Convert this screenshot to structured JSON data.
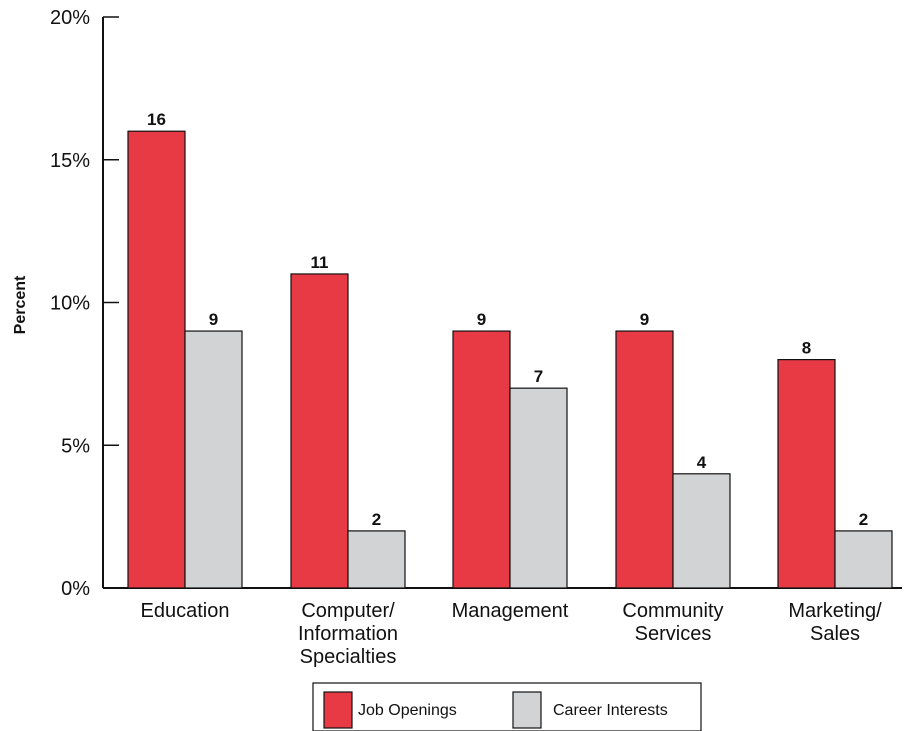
{
  "chart_data": {
    "type": "bar",
    "title": "",
    "xlabel": "",
    "ylabel": "Percent",
    "ylim": [
      0,
      20
    ],
    "yticks": [
      0,
      5,
      10,
      15,
      20
    ],
    "ytick_labels": [
      "0%",
      "5%",
      "10%",
      "15%",
      "20%"
    ],
    "categories": [
      [
        "Education"
      ],
      [
        "Computer/",
        "Information",
        "Specialties"
      ],
      [
        "Management"
      ],
      [
        "Community",
        "Services"
      ],
      [
        "Marketing/",
        "Sales"
      ]
    ],
    "series": [
      {
        "name": "Job Openings",
        "color": "#e83a45",
        "values": [
          16,
          11,
          9,
          9,
          8
        ]
      },
      {
        "name": "Career Interests",
        "color": "#d1d3d4",
        "values": [
          9,
          2,
          7,
          4,
          2
        ]
      }
    ],
    "grid": false,
    "legend_position": "bottom-center"
  }
}
